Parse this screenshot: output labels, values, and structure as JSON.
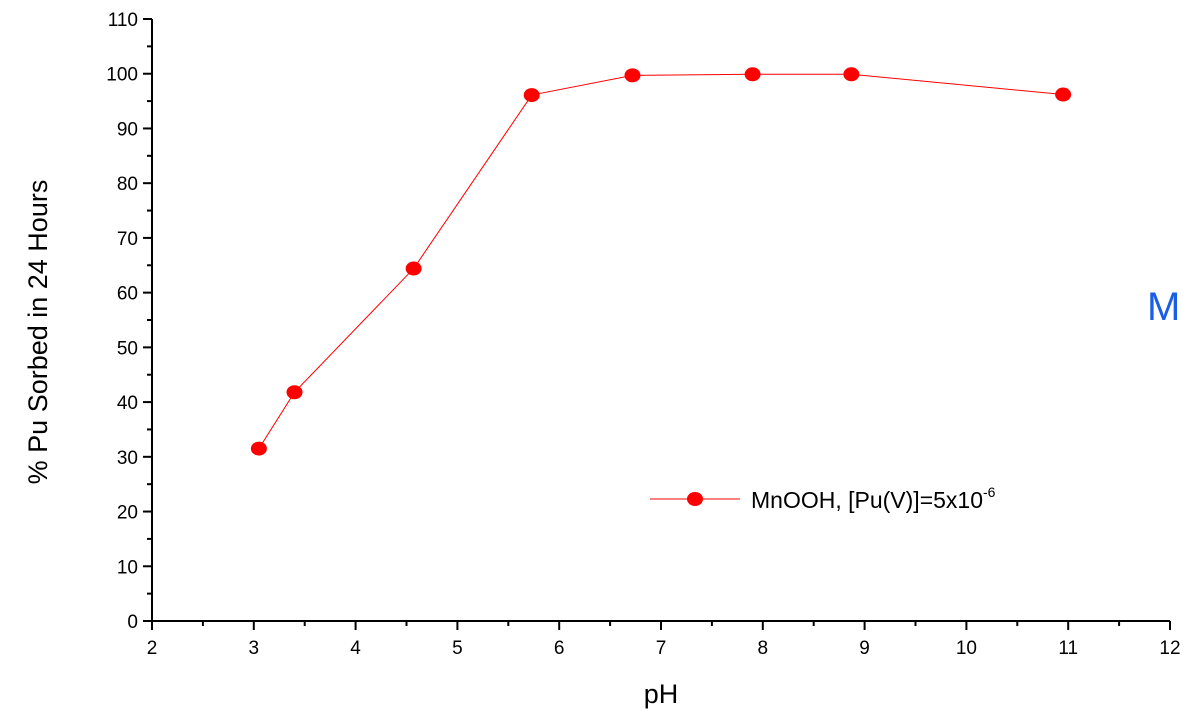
{
  "chart_data": {
    "type": "line",
    "title": "",
    "xlabel": "pH",
    "ylabel": "% Pu Sorbed in 24 Hours",
    "xlim": [
      2,
      12
    ],
    "ylim": [
      0,
      110
    ],
    "x_ticks": [
      2,
      3,
      4,
      5,
      6,
      7,
      8,
      9,
      10,
      11,
      12
    ],
    "y_ticks": [
      0,
      10,
      20,
      30,
      40,
      50,
      60,
      70,
      80,
      90,
      100,
      110
    ],
    "grid": false,
    "legend_position": "center-right",
    "series": [
      {
        "name": "MnOOH, [Pu(V)]=5x10",
        "name_superscript": "-6",
        "color": "#ff0000",
        "marker": "circle",
        "x": [
          3.05,
          3.4,
          4.57,
          5.73,
          6.72,
          7.9,
          8.87,
          10.95
        ],
        "y": [
          31.5,
          41.8,
          64.4,
          96.1,
          99.7,
          99.9,
          99.9,
          96.2
        ]
      }
    ],
    "annotations": [
      {
        "text": "M",
        "color": "#1a5ee6"
      }
    ]
  }
}
